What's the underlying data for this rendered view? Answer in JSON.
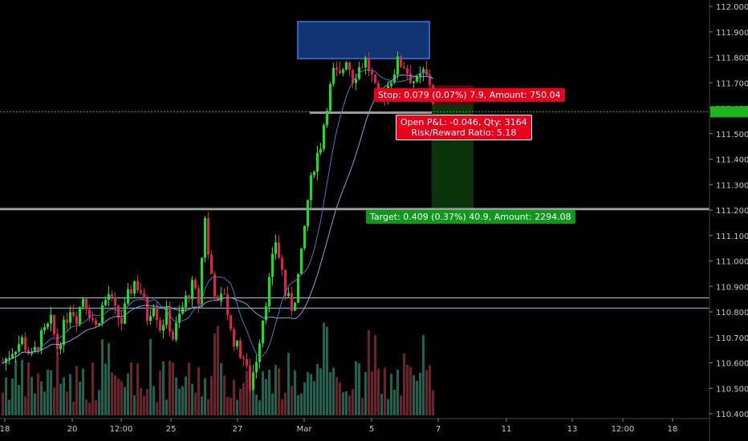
{
  "chart_data": {
    "type": "candlestick",
    "y_ticks": [
      "112.0000",
      "111.9000",
      "111.8000",
      "111.7000",
      "111.6000",
      "111.5000",
      "111.4000",
      "111.3000",
      "111.2000",
      "111.1000",
      "111.0000",
      "110.9000",
      "110.8000",
      "110.7000",
      "110.6000",
      "110.5000",
      "110.4000"
    ],
    "x_ticks": [
      "18",
      "20",
      "12:00",
      "25",
      "27",
      "Mar",
      "5",
      "7",
      "11",
      "13",
      "12:00",
      "18"
    ],
    "ylim": [
      110.38,
      112.02
    ],
    "current_price": 111.5862,
    "price_path": [
      [
        0,
        110.6
      ],
      [
        3,
        110.65
      ],
      [
        6,
        110.69
      ],
      [
        9,
        110.62
      ],
      [
        12,
        110.7
      ],
      [
        15,
        110.76
      ],
      [
        17,
        110.66
      ],
      [
        19,
        110.74
      ],
      [
        21,
        110.82
      ],
      [
        23,
        110.78
      ],
      [
        25,
        110.86
      ],
      [
        27,
        110.8
      ],
      [
        29,
        110.74
      ],
      [
        31,
        110.82
      ],
      [
        33,
        110.87
      ],
      [
        35,
        110.8
      ],
      [
        37,
        110.76
      ],
      [
        39,
        110.86
      ],
      [
        41,
        110.92
      ],
      [
        43,
        110.88
      ],
      [
        45,
        110.78
      ],
      [
        47,
        110.84
      ],
      [
        49,
        110.74
      ],
      [
        51,
        110.79
      ],
      [
        53,
        110.7
      ],
      [
        55,
        110.78
      ],
      [
        57,
        110.85
      ],
      [
        59,
        110.9
      ],
      [
        61,
        110.84
      ],
      [
        63,
        111.18
      ],
      [
        64,
        111.02
      ],
      [
        65,
        110.95
      ],
      [
        67,
        110.82
      ],
      [
        69,
        110.88
      ],
      [
        71,
        110.72
      ],
      [
        73,
        110.66
      ],
      [
        75,
        110.62
      ],
      [
        77,
        110.51
      ],
      [
        79,
        110.62
      ],
      [
        81,
        110.78
      ],
      [
        83,
        110.92
      ],
      [
        85,
        111.08
      ],
      [
        87,
        110.96
      ],
      [
        88,
        110.87
      ],
      [
        90,
        110.82
      ],
      [
        91,
        110.86
      ],
      [
        93,
        111.02
      ],
      [
        95,
        111.24
      ],
      [
        97,
        111.38
      ],
      [
        99,
        111.46
      ],
      [
        101,
        111.62
      ],
      [
        103,
        111.74
      ],
      [
        105,
        111.72
      ],
      [
        107,
        111.8
      ],
      [
        109,
        111.72
      ],
      [
        111,
        111.76
      ],
      [
        113,
        111.79
      ],
      [
        115,
        111.72
      ],
      [
        117,
        111.62
      ],
      [
        119,
        111.66
      ],
      [
        121,
        111.72
      ],
      [
        123,
        111.78
      ],
      [
        125,
        111.77
      ],
      [
        127,
        111.72
      ],
      [
        129,
        111.7
      ],
      [
        131,
        111.74
      ],
      [
        133,
        111.7
      ],
      [
        134,
        111.63
      ]
    ],
    "volume_bars": 134,
    "reference_lines": [
      111.5862,
      111.204,
      110.855,
      110.815
    ],
    "position": {
      "stop_label": "Stop: 0.079 (0.07%) 7.9, Amount: 750.04",
      "open_pl_label": "Open P&L: -0.046, Qty: 3164",
      "rr_label": "Risk/Reward Ratio: 5.18",
      "target_label": "Target: 0.409 (0.37%) 40.9, Amount: 2294.08",
      "entry": 111.611,
      "stop": 111.69,
      "target": 111.202
    },
    "highlight_range": [
      111.795,
      111.94
    ]
  },
  "colors": {
    "background": "#000000",
    "up": "#15e21f",
    "down": "#e0204a",
    "volume_up": "#1f6e5a",
    "volume_down": "#7a2630",
    "ma": "#5a73b8",
    "grid_green": "#1fb51f",
    "gray_line": "#9a9a9a",
    "cyan_line": "#7fd6e6",
    "box_fill": "#163a80",
    "box_stroke": "#3d6ad1",
    "stop_zone": "#5a1014",
    "target_zone": "#0c3a0e"
  }
}
